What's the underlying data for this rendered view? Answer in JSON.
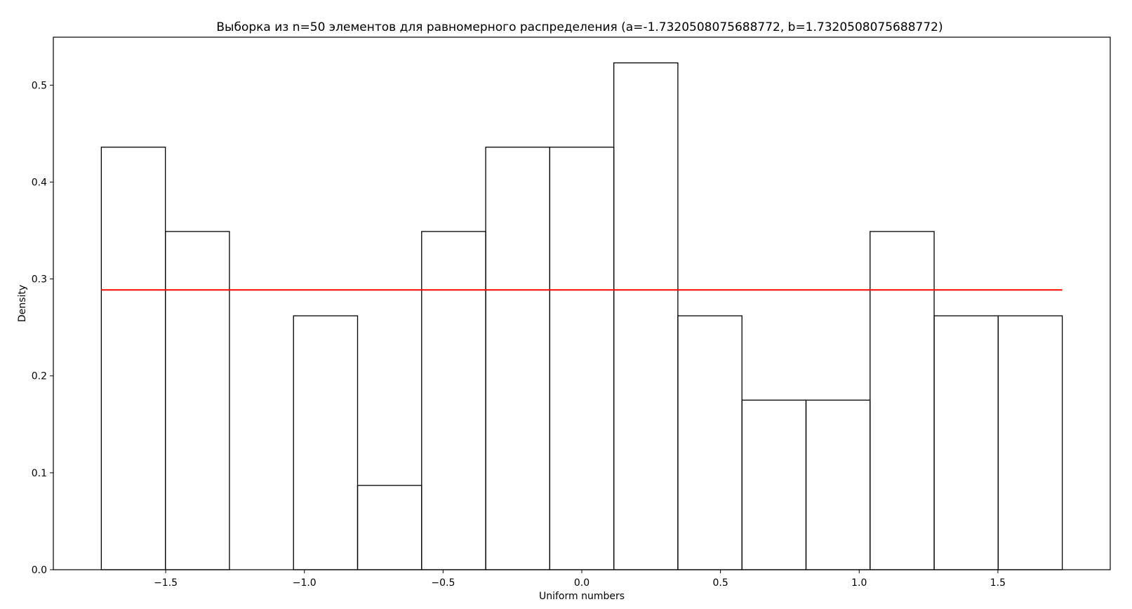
{
  "chart_data": {
    "type": "bar",
    "title": "Выборка из n=50 элементов для равномерного распределения (a=-1.7320508075688772, b=1.7320508075688772)",
    "xlabel": "Uniform numbers",
    "ylabel": "Density",
    "xlim": [
      -1.905,
      1.905
    ],
    "ylim": [
      0.0,
      0.5495
    ],
    "x_ticks": [
      -1.5,
      -1.0,
      -0.5,
      0.0,
      0.5,
      1.0,
      1.5
    ],
    "x_tick_labels": [
      "−1.5",
      "−1.0",
      "−0.5",
      "0.0",
      "0.5",
      "1.0",
      "1.5"
    ],
    "y_ticks": [
      0.0,
      0.1,
      0.2,
      0.3,
      0.4,
      0.5
    ],
    "y_tick_labels": [
      "0.0",
      "0.1",
      "0.2",
      "0.3",
      "0.4",
      "0.5"
    ],
    "grid": false,
    "histogram": {
      "bin_start": -1.7320508075688772,
      "bin_end": 1.7320508075688772,
      "density": [
        0.436,
        0.349,
        0.0,
        0.262,
        0.087,
        0.349,
        0.436,
        0.436,
        0.523,
        0.262,
        0.175,
        0.175,
        0.349,
        0.262,
        0.262
      ],
      "edge_color": "#000000"
    },
    "pdf_line": {
      "x": [
        -1.7320508075688772,
        1.7320508075688772
      ],
      "y": [
        0.2887,
        0.2887
      ],
      "color": "#ff0000"
    }
  }
}
